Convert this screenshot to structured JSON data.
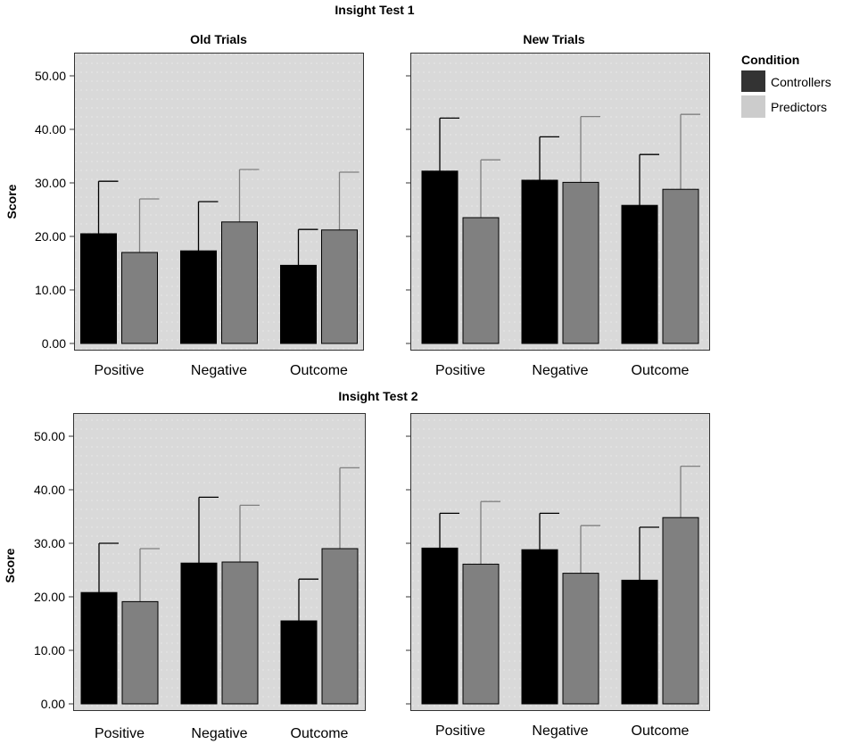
{
  "chart_data": {
    "type": "bar",
    "legend": {
      "title": "Condition",
      "placement": "top-right",
      "entries": [
        {
          "name": "Controllers",
          "color": "#333333"
        },
        {
          "name": "Predictors",
          "color": "#cccccc"
        }
      ]
    },
    "series_colors": {
      "Controllers": "#000000",
      "Predictors": "#808080"
    },
    "panel_background": "#d9d9d9",
    "ylabel": "Score",
    "ylim": [
      0,
      55
    ],
    "yticks": [
      0,
      10,
      20,
      30,
      40,
      50
    ],
    "ytick_labels": [
      "0.00",
      "10.00",
      "20.00",
      "30.00",
      "40.00",
      "50.00"
    ],
    "categories": [
      "Positive",
      "Negative",
      "Outcome"
    ],
    "rows": [
      {
        "title": "Insight Test 1",
        "panels": [
          {
            "title": "Old Trials",
            "series": [
              {
                "name": "Controllers",
                "values": [
                  20.5,
                  17.3,
                  14.6
                ],
                "err_upper": [
                  30.3,
                  26.5,
                  21.3
                ]
              },
              {
                "name": "Predictors",
                "values": [
                  17.0,
                  22.7,
                  21.2
                ],
                "err_upper": [
                  27.0,
                  32.5,
                  32.0
                ]
              }
            ]
          },
          {
            "title": "New Trials",
            "series": [
              {
                "name": "Controllers",
                "values": [
                  32.2,
                  30.5,
                  25.8
                ],
                "err_upper": [
                  42.1,
                  38.6,
                  35.3
                ]
              },
              {
                "name": "Predictors",
                "values": [
                  23.5,
                  30.1,
                  28.8
                ],
                "err_upper": [
                  34.3,
                  42.4,
                  42.8
                ]
              }
            ]
          }
        ]
      },
      {
        "title": "Insight Test 2",
        "panels": [
          {
            "title": "",
            "series": [
              {
                "name": "Controllers",
                "values": [
                  20.8,
                  26.3,
                  15.5
                ],
                "err_upper": [
                  30.0,
                  38.6,
                  23.3
                ]
              },
              {
                "name": "Predictors",
                "values": [
                  19.1,
                  26.5,
                  29.0
                ],
                "err_upper": [
                  29.0,
                  37.1,
                  44.1
                ]
              }
            ]
          },
          {
            "title": "",
            "series": [
              {
                "name": "Controllers",
                "values": [
                  29.1,
                  28.8,
                  23.1
                ],
                "err_upper": [
                  35.6,
                  35.6,
                  33.0
                ]
              },
              {
                "name": "Predictors",
                "values": [
                  26.1,
                  24.4,
                  34.8
                ],
                "err_upper": [
                  37.8,
                  33.3,
                  44.4
                ]
              }
            ]
          }
        ]
      }
    ]
  }
}
